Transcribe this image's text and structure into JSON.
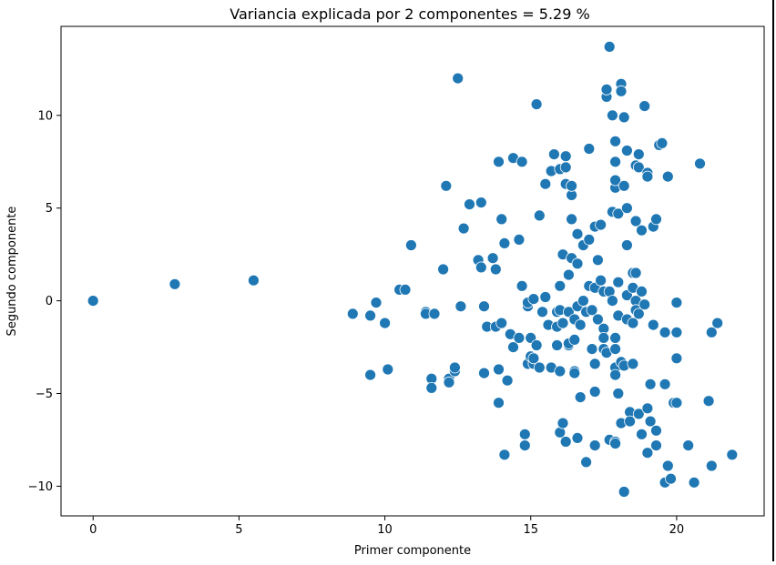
{
  "chart_data": {
    "type": "scatter",
    "title": "Variancia explicada por 2 componentes = 5.29 %",
    "xlabel": "Primer componente",
    "ylabel": "Segundo componente",
    "xlim": [
      -1.1,
      23.0
    ],
    "ylim": [
      -11.6,
      14.8
    ],
    "xticks": [
      0,
      5,
      10,
      15,
      20
    ],
    "yticks": [
      -10,
      -5,
      0,
      5,
      10
    ],
    "xtick_labels": [
      "0",
      "5",
      "10",
      "15",
      "20"
    ],
    "ytick_labels": [
      "−10",
      "−5",
      "0",
      "5",
      "10"
    ],
    "grid": false,
    "legend": "none",
    "marker_color": "#1f77b4",
    "marker_edge_color": "#ffffff",
    "points": [
      [
        0.0,
        0.0
      ],
      [
        2.8,
        0.9
      ],
      [
        5.5,
        1.1
      ],
      [
        8.9,
        -0.7
      ],
      [
        9.5,
        -0.8
      ],
      [
        9.7,
        -0.1
      ],
      [
        10.0,
        -1.2
      ],
      [
        9.5,
        -4.0
      ],
      [
        10.1,
        -3.7
      ],
      [
        10.5,
        0.6
      ],
      [
        10.7,
        0.6
      ],
      [
        10.9,
        3.0
      ],
      [
        11.4,
        -0.6
      ],
      [
        11.4,
        -0.7
      ],
      [
        11.7,
        -0.7
      ],
      [
        11.6,
        -4.2
      ],
      [
        11.6,
        -4.7
      ],
      [
        12.0,
        1.7
      ],
      [
        12.1,
        6.2
      ],
      [
        12.2,
        -4.2
      ],
      [
        12.2,
        -4.4
      ],
      [
        12.4,
        -3.8
      ],
      [
        12.4,
        -3.6
      ],
      [
        12.5,
        12.0
      ],
      [
        12.6,
        -0.3
      ],
      [
        12.7,
        3.9
      ],
      [
        12.9,
        5.2
      ],
      [
        13.2,
        2.2
      ],
      [
        13.3,
        1.8
      ],
      [
        13.3,
        5.3
      ],
      [
        13.4,
        -0.3
      ],
      [
        13.4,
        -3.9
      ],
      [
        13.5,
        -1.4
      ],
      [
        13.7,
        2.3
      ],
      [
        13.8,
        1.7
      ],
      [
        13.8,
        -1.4
      ],
      [
        13.9,
        7.5
      ],
      [
        13.9,
        -3.7
      ],
      [
        13.9,
        -5.5
      ],
      [
        14.0,
        4.4
      ],
      [
        14.0,
        -1.2
      ],
      [
        14.1,
        3.1
      ],
      [
        14.1,
        -8.3
      ],
      [
        14.2,
        -4.3
      ],
      [
        14.3,
        -1.8
      ],
      [
        14.4,
        -2.5
      ],
      [
        14.4,
        7.7
      ],
      [
        14.6,
        3.3
      ],
      [
        14.6,
        -2.0
      ],
      [
        14.7,
        7.5
      ],
      [
        14.7,
        0.8
      ],
      [
        14.8,
        -7.2
      ],
      [
        14.8,
        -7.8
      ],
      [
        14.9,
        -0.3
      ],
      [
        14.9,
        -0.1
      ],
      [
        14.9,
        -3.4
      ],
      [
        15.0,
        -2.0
      ],
      [
        15.0,
        -3.0
      ],
      [
        15.1,
        -3.4
      ],
      [
        15.1,
        -3.1
      ],
      [
        15.1,
        0.1
      ],
      [
        15.2,
        10.6
      ],
      [
        15.2,
        -2.4
      ],
      [
        15.3,
        -3.6
      ],
      [
        15.3,
        4.6
      ],
      [
        15.4,
        -0.6
      ],
      [
        15.5,
        0.2
      ],
      [
        15.5,
        6.3
      ],
      [
        15.6,
        -1.3
      ],
      [
        15.7,
        -3.6
      ],
      [
        15.7,
        7.0
      ],
      [
        15.8,
        7.9
      ],
      [
        15.9,
        -0.6
      ],
      [
        15.9,
        -1.4
      ],
      [
        15.9,
        -2.4
      ],
      [
        15.9,
        -1.4
      ],
      [
        16.0,
        7.1
      ],
      [
        16.0,
        0.8
      ],
      [
        16.0,
        -0.5
      ],
      [
        16.0,
        -3.8
      ],
      [
        16.0,
        -7.1
      ],
      [
        16.1,
        2.5
      ],
      [
        16.1,
        -1.2
      ],
      [
        16.1,
        -6.6
      ],
      [
        16.2,
        -7.6
      ],
      [
        16.2,
        7.2
      ],
      [
        16.2,
        6.3
      ],
      [
        16.2,
        7.8
      ],
      [
        16.3,
        -0.6
      ],
      [
        16.3,
        -2.4
      ],
      [
        16.3,
        -2.3
      ],
      [
        16.3,
        1.4
      ],
      [
        16.4,
        2.3
      ],
      [
        16.4,
        5.7
      ],
      [
        16.4,
        4.4
      ],
      [
        16.4,
        6.2
      ],
      [
        16.5,
        -3.8
      ],
      [
        16.5,
        -3.9
      ],
      [
        16.5,
        -2.1
      ],
      [
        16.5,
        -1.0
      ],
      [
        16.6,
        3.6
      ],
      [
        16.6,
        2.0
      ],
      [
        16.6,
        -0.3
      ],
      [
        16.6,
        -7.4
      ],
      [
        16.7,
        -1.3
      ],
      [
        16.7,
        -5.2
      ],
      [
        16.8,
        3.0
      ],
      [
        16.8,
        0.0
      ],
      [
        16.9,
        -8.7
      ],
      [
        16.9,
        -0.6
      ],
      [
        17.0,
        3.3
      ],
      [
        17.0,
        8.2
      ],
      [
        17.0,
        0.8
      ],
      [
        17.1,
        -0.5
      ],
      [
        17.1,
        -2.6
      ],
      [
        17.2,
        4.0
      ],
      [
        17.2,
        0.7
      ],
      [
        17.2,
        -3.4
      ],
      [
        17.2,
        -4.9
      ],
      [
        17.2,
        -7.8
      ],
      [
        17.3,
        -1.0
      ],
      [
        17.3,
        2.2
      ],
      [
        17.4,
        4.1
      ],
      [
        17.4,
        1.1
      ],
      [
        17.5,
        0.5
      ],
      [
        17.5,
        -1.5
      ],
      [
        17.5,
        -2.0
      ],
      [
        17.5,
        -2.6
      ],
      [
        17.6,
        11.0
      ],
      [
        17.6,
        11.4
      ],
      [
        17.6,
        -2.8
      ],
      [
        17.7,
        13.7
      ],
      [
        17.7,
        0.5
      ],
      [
        17.7,
        -7.5
      ],
      [
        17.8,
        10.0
      ],
      [
        17.8,
        4.8
      ],
      [
        17.8,
        0.0
      ],
      [
        17.9,
        8.6
      ],
      [
        17.9,
        7.5
      ],
      [
        17.9,
        6.1
      ],
      [
        17.9,
        6.5
      ],
      [
        17.9,
        -2.0
      ],
      [
        17.9,
        -2.6
      ],
      [
        17.9,
        -3.6
      ],
      [
        17.9,
        -4.0
      ],
      [
        17.9,
        -7.6
      ],
      [
        17.9,
        -7.7
      ],
      [
        18.0,
        1.0
      ],
      [
        18.0,
        4.7
      ],
      [
        18.0,
        -0.8
      ],
      [
        18.0,
        -5.0
      ],
      [
        18.1,
        11.7
      ],
      [
        18.1,
        11.3
      ],
      [
        18.1,
        -3.3
      ],
      [
        18.1,
        -6.6
      ],
      [
        18.2,
        9.9
      ],
      [
        18.2,
        6.2
      ],
      [
        18.2,
        -3.5
      ],
      [
        18.2,
        -10.3
      ],
      [
        18.3,
        8.1
      ],
      [
        18.3,
        5.0
      ],
      [
        18.3,
        3.0
      ],
      [
        18.3,
        0.3
      ],
      [
        18.3,
        -1.0
      ],
      [
        18.4,
        -6.0
      ],
      [
        18.4,
        -6.5
      ],
      [
        18.5,
        1.5
      ],
      [
        18.5,
        0.7
      ],
      [
        18.5,
        -1.2
      ],
      [
        18.5,
        -3.4
      ],
      [
        18.6,
        4.3
      ],
      [
        18.6,
        7.3
      ],
      [
        18.6,
        1.5
      ],
      [
        18.6,
        0.0
      ],
      [
        18.6,
        -0.5
      ],
      [
        18.7,
        7.9
      ],
      [
        18.7,
        7.2
      ],
      [
        18.7,
        -0.7
      ],
      [
        18.7,
        -6.1
      ],
      [
        18.8,
        3.8
      ],
      [
        18.8,
        0.5
      ],
      [
        18.8,
        -7.2
      ],
      [
        18.9,
        10.5
      ],
      [
        18.9,
        -0.2
      ],
      [
        19.0,
        6.9
      ],
      [
        19.0,
        6.7
      ],
      [
        19.0,
        -5.8
      ],
      [
        19.0,
        -8.2
      ],
      [
        19.1,
        -4.5
      ],
      [
        19.1,
        -6.5
      ],
      [
        19.2,
        4.0
      ],
      [
        19.2,
        -1.3
      ],
      [
        19.3,
        4.4
      ],
      [
        19.3,
        -7.0
      ],
      [
        19.3,
        -7.8
      ],
      [
        19.4,
        8.4
      ],
      [
        19.5,
        8.5
      ],
      [
        19.6,
        -1.7
      ],
      [
        19.6,
        -4.5
      ],
      [
        19.6,
        -9.8
      ],
      [
        19.7,
        6.7
      ],
      [
        19.7,
        -8.9
      ],
      [
        19.8,
        -9.6
      ],
      [
        19.9,
        -5.5
      ],
      [
        20.0,
        -3.1
      ],
      [
        20.0,
        -5.5
      ],
      [
        20.0,
        -1.7
      ],
      [
        20.0,
        -0.1
      ],
      [
        20.4,
        -7.8
      ],
      [
        20.6,
        -9.8
      ],
      [
        20.8,
        7.4
      ],
      [
        21.1,
        -5.4
      ],
      [
        21.2,
        -1.7
      ],
      [
        21.2,
        -8.9
      ],
      [
        21.4,
        -1.2
      ],
      [
        21.9,
        -8.3
      ]
    ]
  }
}
